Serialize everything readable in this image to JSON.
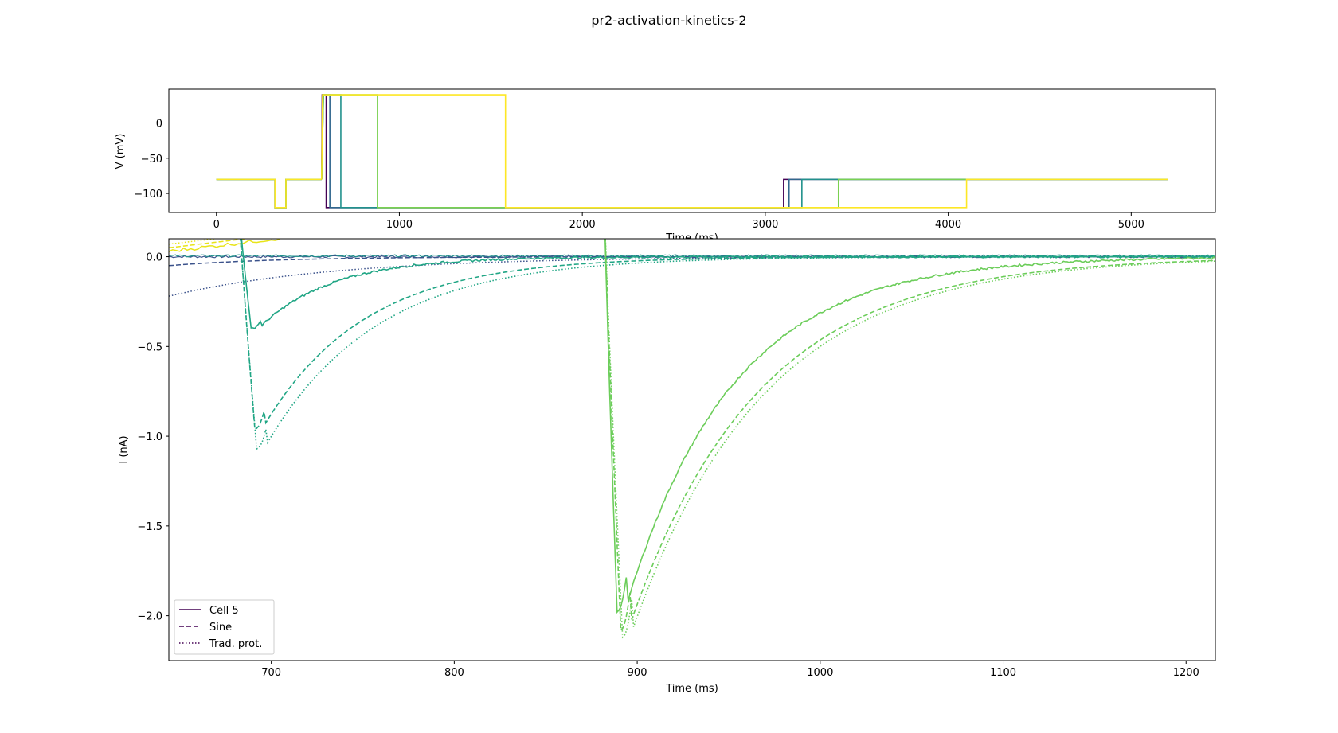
{
  "figure_title": "pr2-activation-kinetics-2",
  "chart_data": [
    {
      "type": "line",
      "name": "voltage-protocol",
      "xlabel": "Time (ms)",
      "ylabel": "V (mV)",
      "xlim": [
        -260,
        5460
      ],
      "ylim": [
        -127,
        48
      ],
      "xticks": [
        0,
        1000,
        2000,
        3000,
        4000,
        5000
      ],
      "yticks": [
        0,
        -50,
        -100
      ],
      "series": [
        {
          "name": "protocol-1",
          "color": "#440154",
          "step_end": 3100
        },
        {
          "name": "protocol-2",
          "color": "#31688e",
          "step_end": 3130
        },
        {
          "name": "protocol-3",
          "color": "#21918c",
          "step_end": 3200
        },
        {
          "name": "protocol-4",
          "color": "#35b779",
          "step_end": 3400
        },
        {
          "name": "protocol-5",
          "color": "#90d743",
          "step_end": 3400
        },
        {
          "name": "protocol-6",
          "color": "#fde725",
          "step_end": 4100
        }
      ],
      "series_pulses": [
        {
          "start": 578,
          "end": 600,
          "color": "#440154"
        },
        {
          "start": 582,
          "end": 620,
          "color": "#31688e"
        },
        {
          "start": 585,
          "end": 680,
          "color": "#21918c"
        },
        {
          "start": 585,
          "end": 880,
          "color": "#7ad151"
        },
        {
          "start": 580,
          "end": 1580,
          "color": "#fde725"
        }
      ],
      "levels": {
        "holding": -80,
        "pre_dip": -120,
        "pulse": 40,
        "post": -120
      },
      "dip": [
        320,
        380
      ],
      "time_range": [
        0,
        5200
      ]
    },
    {
      "type": "line",
      "name": "current-traces",
      "xlabel": "Time (ms)",
      "ylabel": "I (nA)",
      "xlim": [
        644,
        1216
      ],
      "ylim": [
        -2.25,
        0.1
      ],
      "xticks": [
        700,
        800,
        900,
        1000,
        1100,
        1200
      ],
      "yticks": [
        0.0,
        -0.5,
        -1.0,
        -1.5,
        -2.0
      ],
      "ytick_labels": [
        "0.0",
        "−0.5",
        "−1.0",
        "−1.5",
        "−2.0"
      ],
      "xtick_labels": [
        "700",
        "800",
        "900",
        "1000",
        "1100",
        "1200"
      ],
      "traces": [
        {
          "name": "cell5-trace-a",
          "style": "solid",
          "color": "#21a685",
          "start": 682,
          "peak_time": 689,
          "peak": -0.4,
          "tau": 40
        },
        {
          "name": "sine-trace-a",
          "style": "dashed",
          "color": "#21a685",
          "start": 682,
          "peak_time": 691,
          "peak": -0.96,
          "tau": 55
        },
        {
          "name": "trad-trace-a",
          "style": "dotted",
          "color": "#21a685",
          "start": 682,
          "peak_time": 692,
          "peak": -1.07,
          "tau": 60
        },
        {
          "name": "cell5-trace-b",
          "style": "solid",
          "color": "#6ccd5a",
          "start": 882,
          "peak_time": 889,
          "peak": -1.98,
          "tau": 58
        },
        {
          "name": "sine-trace-b",
          "style": "dashed",
          "color": "#6ccd5a",
          "start": 882,
          "peak_time": 891,
          "peak": -2.08,
          "tau": 70
        },
        {
          "name": "trad-trace-b",
          "style": "dotted",
          "color": "#6ccd5a",
          "start": 882,
          "peak_time": 892,
          "peak": -2.12,
          "tau": 72
        }
      ],
      "baselines": [
        {
          "name": "baseline-purple",
          "color": "#3b528b",
          "value": 0.0
        },
        {
          "name": "baseline-teal",
          "color": "#21918c",
          "value": 0.005
        }
      ],
      "decaying_fits": [
        {
          "name": "fit-dark-dashed",
          "style": "dashed",
          "color": "#3b528b",
          "v0": -0.05,
          "tau": 60
        },
        {
          "name": "fit-dark-dotted",
          "style": "dotted",
          "color": "#3b528b",
          "v0": -0.22,
          "tau": 90
        }
      ],
      "rising_fits": [
        {
          "name": "fit-yellow-solid",
          "style": "solid",
          "color": "#e8e419",
          "v0": 0.03,
          "slope": 0.0012
        },
        {
          "name": "fit-yellow-dashed",
          "style": "dashed",
          "color": "#e8e419",
          "v0": 0.05,
          "slope": 0.0012
        },
        {
          "name": "fit-yellow-dotted",
          "style": "dotted",
          "color": "#e8e419",
          "v0": 0.07,
          "slope": 0.0012
        }
      ],
      "legend": {
        "position": "lower-left",
        "entries": [
          {
            "label": "Cell 5",
            "style": "solid",
            "color": "#440154"
          },
          {
            "label": "Sine",
            "style": "dashed",
            "color": "#440154"
          },
          {
            "label": "Trad. prot.",
            "style": "dotted",
            "color": "#440154"
          }
        ]
      }
    }
  ]
}
